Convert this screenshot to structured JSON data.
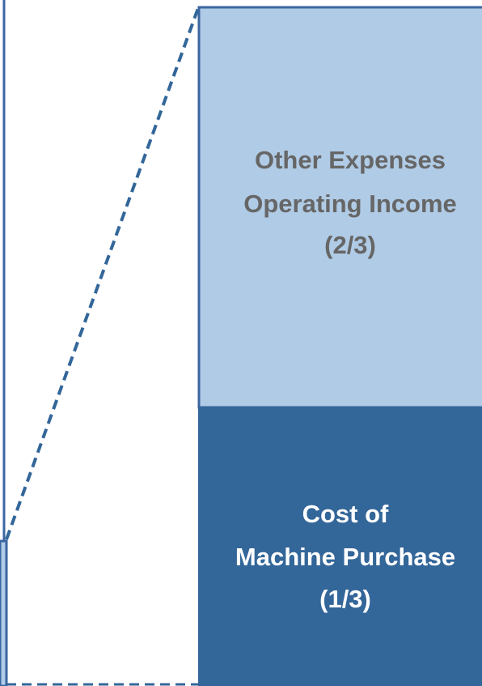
{
  "segments": [
    {
      "lines": [
        "Other Expenses",
        "Operating Income",
        "(2/3)"
      ]
    },
    {
      "lines": [
        "Cost of",
        "Machine Purchase",
        "(1/3)"
      ]
    }
  ]
}
